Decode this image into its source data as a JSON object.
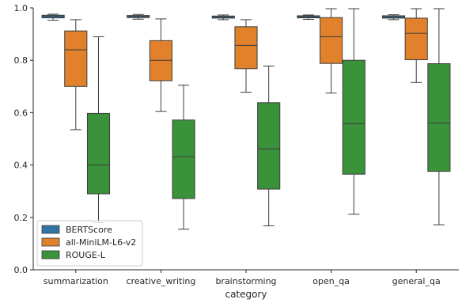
{
  "chart_data": {
    "type": "box",
    "xlabel": "category",
    "ylabel": "",
    "ylim": [
      0.0,
      1.0
    ],
    "yticks": [
      0.0,
      0.2,
      0.4,
      0.6,
      0.8,
      1.0
    ],
    "yticklabels": [
      "0.0",
      "0.2",
      "0.4",
      "0.6",
      "0.8",
      "1.0"
    ],
    "categories": [
      "summarization",
      "creative_writing",
      "brainstorming",
      "open_qa",
      "general_qa"
    ],
    "legend_position": "lower-left",
    "grid": false,
    "series": [
      {
        "name": "BERTScore",
        "color": "#3274a1",
        "boxes": [
          {
            "whislo": 0.953,
            "q1": 0.962,
            "med": 0.967,
            "q3": 0.972,
            "whishi": 0.976
          },
          {
            "whislo": 0.957,
            "q1": 0.963,
            "med": 0.967,
            "q3": 0.971,
            "whishi": 0.975
          },
          {
            "whislo": 0.955,
            "q1": 0.961,
            "med": 0.965,
            "q3": 0.969,
            "whishi": 0.973
          },
          {
            "whislo": 0.956,
            "q1": 0.962,
            "med": 0.966,
            "q3": 0.97,
            "whishi": 0.973
          },
          {
            "whislo": 0.955,
            "q1": 0.961,
            "med": 0.965,
            "q3": 0.97,
            "whishi": 0.974
          }
        ]
      },
      {
        "name": "all-MiniLM-L6-v2",
        "color": "#e1812c",
        "boxes": [
          {
            "whislo": 0.535,
            "q1": 0.7,
            "med": 0.84,
            "q3": 0.912,
            "whishi": 0.955
          },
          {
            "whislo": 0.605,
            "q1": 0.722,
            "med": 0.8,
            "q3": 0.875,
            "whishi": 0.958
          },
          {
            "whislo": 0.678,
            "q1": 0.768,
            "med": 0.857,
            "q3": 0.928,
            "whishi": 0.955
          },
          {
            "whislo": 0.675,
            "q1": 0.788,
            "med": 0.89,
            "q3": 0.963,
            "whishi": 0.997
          },
          {
            "whislo": 0.715,
            "q1": 0.802,
            "med": 0.903,
            "q3": 0.961,
            "whishi": 0.997
          }
        ]
      },
      {
        "name": "ROUGE-L",
        "color": "#3a923a",
        "boxes": [
          {
            "whislo": 0.18,
            "q1": 0.29,
            "med": 0.4,
            "q3": 0.597,
            "whishi": 0.89
          },
          {
            "whislo": 0.155,
            "q1": 0.272,
            "med": 0.432,
            "q3": 0.572,
            "whishi": 0.705
          },
          {
            "whislo": 0.168,
            "q1": 0.308,
            "med": 0.462,
            "q3": 0.638,
            "whishi": 0.778
          },
          {
            "whislo": 0.212,
            "q1": 0.365,
            "med": 0.558,
            "q3": 0.8,
            "whishi": 0.997
          },
          {
            "whislo": 0.172,
            "q1": 0.376,
            "med": 0.56,
            "q3": 0.787,
            "whishi": 0.997
          }
        ]
      }
    ]
  }
}
